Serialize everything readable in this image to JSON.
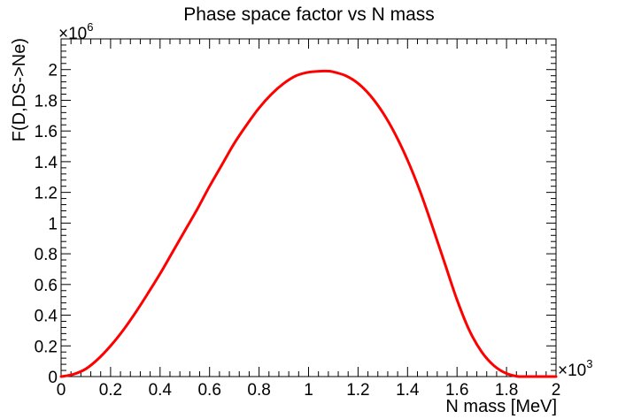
{
  "chart_data": {
    "type": "line",
    "title": "Phase space factor vs N mass",
    "xlabel": "N mass [MeV]",
    "ylabel": "F(D,DS->Ne)",
    "x_multiplier_label": "×10",
    "x_multiplier_exp": "3",
    "y_multiplier_label": "×10",
    "y_multiplier_exp": "6",
    "xlim": [
      0,
      2
    ],
    "ylim": [
      0,
      2.2
    ],
    "x_ticks": [
      "0",
      "0.2",
      "0.4",
      "0.6",
      "0.8",
      "1",
      "1.2",
      "1.4",
      "1.6",
      "1.8",
      "2"
    ],
    "y_ticks": [
      "0",
      "0.2",
      "0.4",
      "0.6",
      "0.8",
      "1",
      "1.2",
      "1.4",
      "1.6",
      "1.8",
      "2"
    ],
    "grid": false,
    "series": [
      {
        "color": "#ff0000",
        "x": [
          0,
          0.05,
          0.1,
          0.15,
          0.2,
          0.25,
          0.3,
          0.35,
          0.4,
          0.45,
          0.5,
          0.55,
          0.6,
          0.65,
          0.7,
          0.75,
          0.8,
          0.85,
          0.9,
          0.95,
          1.0,
          1.05,
          1.08,
          1.1,
          1.15,
          1.2,
          1.25,
          1.3,
          1.35,
          1.4,
          1.45,
          1.5,
          1.55,
          1.6,
          1.65,
          1.7,
          1.75,
          1.8,
          1.85,
          1.9,
          1.95,
          2.0
        ],
        "y": [
          0,
          0.015,
          0.05,
          0.115,
          0.2,
          0.3,
          0.415,
          0.54,
          0.67,
          0.81,
          0.95,
          1.09,
          1.24,
          1.38,
          1.52,
          1.64,
          1.75,
          1.84,
          1.91,
          1.96,
          1.983,
          1.99,
          1.99,
          1.985,
          1.96,
          1.91,
          1.83,
          1.72,
          1.58,
          1.41,
          1.21,
          0.98,
          0.74,
          0.5,
          0.3,
          0.16,
          0.07,
          0.02,
          0.0,
          0,
          0,
          0
        ]
      }
    ]
  }
}
